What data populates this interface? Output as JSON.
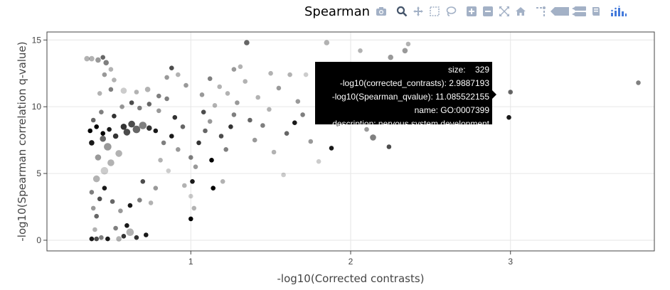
{
  "title": "Spearman",
  "modebar": [
    {
      "name": "camera-icon",
      "label": "Download plot as a png"
    },
    {
      "name": "zoom-icon",
      "label": "Zoom"
    },
    {
      "name": "pan-icon",
      "label": "Pan"
    },
    {
      "name": "box-select-icon",
      "label": "Box Select"
    },
    {
      "name": "lasso-select-icon",
      "label": "Lasso Select"
    },
    {
      "name": "zoom-in-icon",
      "label": "Zoom in"
    },
    {
      "name": "zoom-out-icon",
      "label": "Zoom out"
    },
    {
      "name": "autoscale-icon",
      "label": "Autoscale"
    },
    {
      "name": "home-icon",
      "label": "Reset axes"
    },
    {
      "name": "spike-lines-icon",
      "label": "Toggle Spike Lines"
    },
    {
      "name": "hover-closest-icon",
      "label": "Show closest data on hover"
    },
    {
      "name": "hover-compare-icon",
      "label": "Compare data on hover"
    },
    {
      "name": "edit-chart-icon",
      "label": "Edit in Chart Studio"
    },
    {
      "name": "plotly-logo-icon",
      "label": "Produced with Plotly"
    }
  ],
  "colors": {
    "grid": "#e6e6e6",
    "axis": "#444444",
    "hover_bg": "#000000",
    "hover_text": "#ffffff",
    "marker": "#000000"
  },
  "tooltip": {
    "lines": [
      "size:    329",
      "-log10(corrected_contrasts): 2.9887193",
      "-log10(Spearman_qvalue): 11.085522155",
      "name: GO:0007399",
      "description: nervous system development"
    ]
  },
  "chart_data": {
    "type": "scatter",
    "title": "Spearman",
    "xlabel": "-log10(Corrected contrasts)",
    "ylabel": "-log10(Spearman correlation q-value)",
    "xlim": [
      0.1,
      3.9
    ],
    "ylim": [
      -0.8,
      15.6
    ],
    "xticks": [
      1,
      2,
      3
    ],
    "yticks": [
      0,
      5,
      10,
      15
    ],
    "grid": true,
    "marker_color": "#000000",
    "points": [
      {
        "x": 0.38,
        "y": 0.1,
        "s": 5,
        "o": 0.9
      },
      {
        "x": 0.41,
        "y": 0.1,
        "s": 5,
        "o": 0.7
      },
      {
        "x": 0.44,
        "y": 0.2,
        "s": 5,
        "o": 0.5
      },
      {
        "x": 0.55,
        "y": 0.1,
        "s": 6,
        "o": 0.3
      },
      {
        "x": 0.58,
        "y": 0.3,
        "s": 5,
        "o": 0.8
      },
      {
        "x": 0.62,
        "y": 0.6,
        "s": 9,
        "o": 0.3
      },
      {
        "x": 0.6,
        "y": 1.1,
        "s": 5,
        "o": 0.9
      },
      {
        "x": 0.53,
        "y": 0.9,
        "s": 5,
        "o": 0.5
      },
      {
        "x": 0.4,
        "y": 0.8,
        "s": 5,
        "o": 0.3
      },
      {
        "x": 0.48,
        "y": 0.1,
        "s": 5,
        "o": 0.9
      },
      {
        "x": 0.66,
        "y": 0.2,
        "s": 5,
        "o": 0.8
      },
      {
        "x": 0.72,
        "y": 0.4,
        "s": 5,
        "o": 0.9
      },
      {
        "x": 0.41,
        "y": 1.8,
        "s": 5,
        "o": 0.6
      },
      {
        "x": 0.39,
        "y": 2.4,
        "s": 5,
        "o": 0.4
      },
      {
        "x": 0.43,
        "y": 3.1,
        "s": 5,
        "o": 0.7
      },
      {
        "x": 0.38,
        "y": 3.6,
        "s": 5,
        "o": 0.5
      },
      {
        "x": 0.46,
        "y": 3.9,
        "s": 5,
        "o": 0.9
      },
      {
        "x": 0.51,
        "y": 2.9,
        "s": 5,
        "o": 0.6
      },
      {
        "x": 0.56,
        "y": 2.2,
        "s": 5,
        "o": 0.4
      },
      {
        "x": 0.62,
        "y": 2.6,
        "s": 5,
        "o": 0.9
      },
      {
        "x": 0.68,
        "y": 3.0,
        "s": 5,
        "o": 0.5
      },
      {
        "x": 0.75,
        "y": 2.8,
        "s": 5,
        "o": 0.3
      },
      {
        "x": 0.78,
        "y": 3.9,
        "s": 5,
        "o": 0.4
      },
      {
        "x": 0.7,
        "y": 4.4,
        "s": 5,
        "o": 0.7
      },
      {
        "x": 0.41,
        "y": 4.6,
        "s": 8,
        "o": 0.3
      },
      {
        "x": 0.46,
        "y": 5.2,
        "s": 9,
        "o": 0.2
      },
      {
        "x": 0.5,
        "y": 5.8,
        "s": 8,
        "o": 0.3
      },
      {
        "x": 0.42,
        "y": 6.2,
        "s": 7,
        "o": 0.4
      },
      {
        "x": 0.55,
        "y": 6.5,
        "s": 8,
        "o": 0.3
      },
      {
        "x": 0.48,
        "y": 7.0,
        "s": 9,
        "o": 0.4
      },
      {
        "x": 0.38,
        "y": 7.3,
        "s": 6,
        "o": 0.9
      },
      {
        "x": 0.45,
        "y": 7.6,
        "s": 7,
        "o": 0.6
      },
      {
        "x": 0.53,
        "y": 7.8,
        "s": 6,
        "o": 0.8
      },
      {
        "x": 0.6,
        "y": 8.1,
        "s": 8,
        "o": 0.7
      },
      {
        "x": 0.66,
        "y": 8.3,
        "s": 9,
        "o": 0.6
      },
      {
        "x": 0.7,
        "y": 8.6,
        "s": 9,
        "o": 0.5
      },
      {
        "x": 0.63,
        "y": 8.7,
        "s": 8,
        "o": 0.7
      },
      {
        "x": 0.58,
        "y": 8.5,
        "s": 7,
        "o": 0.8
      },
      {
        "x": 0.74,
        "y": 8.4,
        "s": 6,
        "o": 0.8
      },
      {
        "x": 0.78,
        "y": 8.2,
        "s": 5,
        "o": 0.9
      },
      {
        "x": 0.37,
        "y": 8.2,
        "s": 5,
        "o": 1.0
      },
      {
        "x": 0.41,
        "y": 8.5,
        "s": 5,
        "o": 1.0
      },
      {
        "x": 0.45,
        "y": 8.0,
        "s": 5,
        "o": 1.0
      },
      {
        "x": 0.49,
        "y": 8.3,
        "s": 5,
        "o": 0.9
      },
      {
        "x": 0.39,
        "y": 9.0,
        "s": 5,
        "o": 0.6
      },
      {
        "x": 0.44,
        "y": 9.6,
        "s": 5,
        "o": 0.5
      },
      {
        "x": 0.52,
        "y": 9.3,
        "s": 5,
        "o": 0.8
      },
      {
        "x": 0.57,
        "y": 10.0,
        "s": 5,
        "o": 0.4
      },
      {
        "x": 0.63,
        "y": 10.3,
        "s": 5,
        "o": 0.7
      },
      {
        "x": 0.68,
        "y": 9.9,
        "s": 5,
        "o": 0.5
      },
      {
        "x": 0.74,
        "y": 10.2,
        "s": 5,
        "o": 0.6
      },
      {
        "x": 0.8,
        "y": 9.7,
        "s": 5,
        "o": 0.4
      },
      {
        "x": 0.43,
        "y": 11.0,
        "s": 5,
        "o": 0.3
      },
      {
        "x": 0.5,
        "y": 11.3,
        "s": 5,
        "o": 0.5
      },
      {
        "x": 0.58,
        "y": 11.2,
        "s": 7,
        "o": 0.2
      },
      {
        "x": 0.66,
        "y": 11.1,
        "s": 5,
        "o": 0.3
      },
      {
        "x": 0.73,
        "y": 11.3,
        "s": 6,
        "o": 0.3
      },
      {
        "x": 0.8,
        "y": 10.8,
        "s": 5,
        "o": 0.5
      },
      {
        "x": 0.46,
        "y": 12.4,
        "s": 5,
        "o": 0.4
      },
      {
        "x": 0.52,
        "y": 12.0,
        "s": 5,
        "o": 0.3
      },
      {
        "x": 0.35,
        "y": 13.6,
        "s": 6,
        "o": 0.3
      },
      {
        "x": 0.38,
        "y": 13.6,
        "s": 6,
        "o": 0.3
      },
      {
        "x": 0.42,
        "y": 13.5,
        "s": 6,
        "o": 0.4
      },
      {
        "x": 0.47,
        "y": 13.3,
        "s": 6,
        "o": 0.5
      },
      {
        "x": 0.5,
        "y": 12.8,
        "s": 5,
        "o": 0.3
      },
      {
        "x": 0.45,
        "y": 13.7,
        "s": 5,
        "o": 0.6
      },
      {
        "x": 0.85,
        "y": 12.2,
        "s": 5,
        "o": 0.4
      },
      {
        "x": 0.92,
        "y": 12.4,
        "s": 5,
        "o": 0.3
      },
      {
        "x": 0.88,
        "y": 12.9,
        "s": 5,
        "o": 0.7
      },
      {
        "x": 0.97,
        "y": 11.6,
        "s": 5,
        "o": 0.4
      },
      {
        "x": 0.85,
        "y": 10.6,
        "s": 5,
        "o": 0.5
      },
      {
        "x": 0.9,
        "y": 9.2,
        "s": 5,
        "o": 0.8
      },
      {
        "x": 0.95,
        "y": 8.5,
        "s": 5,
        "o": 0.6
      },
      {
        "x": 0.88,
        "y": 7.8,
        "s": 5,
        "o": 0.9
      },
      {
        "x": 0.83,
        "y": 7.3,
        "s": 5,
        "o": 0.5
      },
      {
        "x": 0.92,
        "y": 6.8,
        "s": 5,
        "o": 0.4
      },
      {
        "x": 0.81,
        "y": 6.0,
        "s": 5,
        "o": 0.3
      },
      {
        "x": 0.86,
        "y": 5.2,
        "s": 5,
        "o": 0.2
      },
      {
        "x": 0.96,
        "y": 4.1,
        "s": 5,
        "o": 0.3
      },
      {
        "x": 1.0,
        "y": 3.3,
        "s": 5,
        "o": 0.2
      },
      {
        "x": 1.0,
        "y": 1.6,
        "s": 5,
        "o": 1.0
      },
      {
        "x": 1.02,
        "y": 2.4,
        "s": 5,
        "o": 0.3
      },
      {
        "x": 1.01,
        "y": 4.4,
        "s": 5,
        "o": 0.9
      },
      {
        "x": 1.03,
        "y": 5.5,
        "s": 5,
        "o": 0.4
      },
      {
        "x": 1.0,
        "y": 6.2,
        "s": 5,
        "o": 0.5
      },
      {
        "x": 1.05,
        "y": 7.3,
        "s": 5,
        "o": 0.8
      },
      {
        "x": 1.09,
        "y": 8.2,
        "s": 5,
        "o": 0.6
      },
      {
        "x": 1.12,
        "y": 8.9,
        "s": 5,
        "o": 0.4
      },
      {
        "x": 1.08,
        "y": 9.6,
        "s": 5,
        "o": 0.7
      },
      {
        "x": 1.15,
        "y": 10.1,
        "s": 5,
        "o": 0.3
      },
      {
        "x": 1.07,
        "y": 10.9,
        "s": 5,
        "o": 0.4
      },
      {
        "x": 1.18,
        "y": 11.5,
        "s": 5,
        "o": 0.3
      },
      {
        "x": 1.12,
        "y": 12.1,
        "s": 5,
        "o": 0.5
      },
      {
        "x": 1.14,
        "y": 3.9,
        "s": 5,
        "o": 1.0
      },
      {
        "x": 1.2,
        "y": 4.4,
        "s": 5,
        "o": 0.3
      },
      {
        "x": 1.13,
        "y": 6.0,
        "s": 5,
        "o": 1.0
      },
      {
        "x": 1.22,
        "y": 6.8,
        "s": 5,
        "o": 0.5
      },
      {
        "x": 1.19,
        "y": 7.8,
        "s": 5,
        "o": 0.7
      },
      {
        "x": 1.25,
        "y": 8.5,
        "s": 5,
        "o": 0.8
      },
      {
        "x": 1.27,
        "y": 9.4,
        "s": 5,
        "o": 0.5
      },
      {
        "x": 1.29,
        "y": 10.3,
        "s": 5,
        "o": 0.4
      },
      {
        "x": 1.23,
        "y": 11.0,
        "s": 5,
        "o": 0.3
      },
      {
        "x": 1.27,
        "y": 12.8,
        "s": 5,
        "o": 0.4
      },
      {
        "x": 1.31,
        "y": 13.0,
        "s": 5,
        "o": 0.3
      },
      {
        "x": 1.34,
        "y": 11.9,
        "s": 5,
        "o": 0.3
      },
      {
        "x": 1.37,
        "y": 9.0,
        "s": 5,
        "o": 0.6
      },
      {
        "x": 1.4,
        "y": 7.5,
        "s": 5,
        "o": 0.4
      },
      {
        "x": 1.45,
        "y": 8.6,
        "s": 5,
        "o": 0.5
      },
      {
        "x": 1.49,
        "y": 9.8,
        "s": 5,
        "o": 0.3
      },
      {
        "x": 1.42,
        "y": 10.7,
        "s": 5,
        "o": 0.3
      },
      {
        "x": 1.55,
        "y": 11.4,
        "s": 5,
        "o": 0.4
      },
      {
        "x": 1.6,
        "y": 8.0,
        "s": 5,
        "o": 0.6
      },
      {
        "x": 1.52,
        "y": 6.6,
        "s": 5,
        "o": 0.3
      },
      {
        "x": 1.58,
        "y": 4.9,
        "s": 5,
        "o": 0.2
      },
      {
        "x": 1.65,
        "y": 8.8,
        "s": 5,
        "o": 0.9
      },
      {
        "x": 1.7,
        "y": 9.4,
        "s": 5,
        "o": 0.5
      },
      {
        "x": 1.67,
        "y": 10.4,
        "s": 5,
        "o": 0.4
      },
      {
        "x": 1.72,
        "y": 12.4,
        "s": 5,
        "o": 0.2
      },
      {
        "x": 1.75,
        "y": 7.4,
        "s": 5,
        "o": 0.4
      },
      {
        "x": 1.8,
        "y": 5.9,
        "s": 5,
        "o": 0.2
      },
      {
        "x": 1.5,
        "y": 12.5,
        "s": 5,
        "o": 0.3
      },
      {
        "x": 1.62,
        "y": 12.4,
        "s": 5,
        "o": 0.3
      },
      {
        "x": 1.35,
        "y": 14.8,
        "s": 6,
        "o": 0.6
      },
      {
        "x": 1.85,
        "y": 14.8,
        "s": 6,
        "o": 0.3
      },
      {
        "x": 1.88,
        "y": 6.9,
        "s": 5,
        "o": 0.9
      },
      {
        "x": 1.92,
        "y": 8.7,
        "s": 5,
        "o": 0.5
      },
      {
        "x": 1.97,
        "y": 9.2,
        "s": 5,
        "o": 0.4
      },
      {
        "x": 2.0,
        "y": 10.1,
        "s": 5,
        "o": 0.3
      },
      {
        "x": 2.06,
        "y": 14.2,
        "s": 5,
        "o": 0.3
      },
      {
        "x": 2.1,
        "y": 8.3,
        "s": 5,
        "o": 0.4
      },
      {
        "x": 2.14,
        "y": 7.7,
        "s": 7,
        "o": 0.5
      },
      {
        "x": 2.18,
        "y": 9.4,
        "s": 5,
        "o": 0.4
      },
      {
        "x": 2.2,
        "y": 12.8,
        "s": 5,
        "o": 0.3
      },
      {
        "x": 2.24,
        "y": 7.0,
        "s": 5,
        "o": 0.7
      },
      {
        "x": 2.25,
        "y": 13.7,
        "s": 6,
        "o": 0.4
      },
      {
        "x": 2.34,
        "y": 14.2,
        "s": 6,
        "o": 0.4
      },
      {
        "x": 2.36,
        "y": 14.7,
        "s": 5,
        "o": 0.3
      },
      {
        "x": 2.37,
        "y": 9.0,
        "s": 5,
        "o": 0.4
      },
      {
        "x": 2.3,
        "y": 11.0,
        "s": 5,
        "o": 0.3
      },
      {
        "x": 2.99,
        "y": 9.2,
        "s": 5,
        "o": 0.9
      },
      {
        "x": 3.0,
        "y": 11.1,
        "s": 5,
        "o": 0.6
      },
      {
        "x": 3.8,
        "y": 11.8,
        "s": 5,
        "o": 0.5
      }
    ]
  }
}
